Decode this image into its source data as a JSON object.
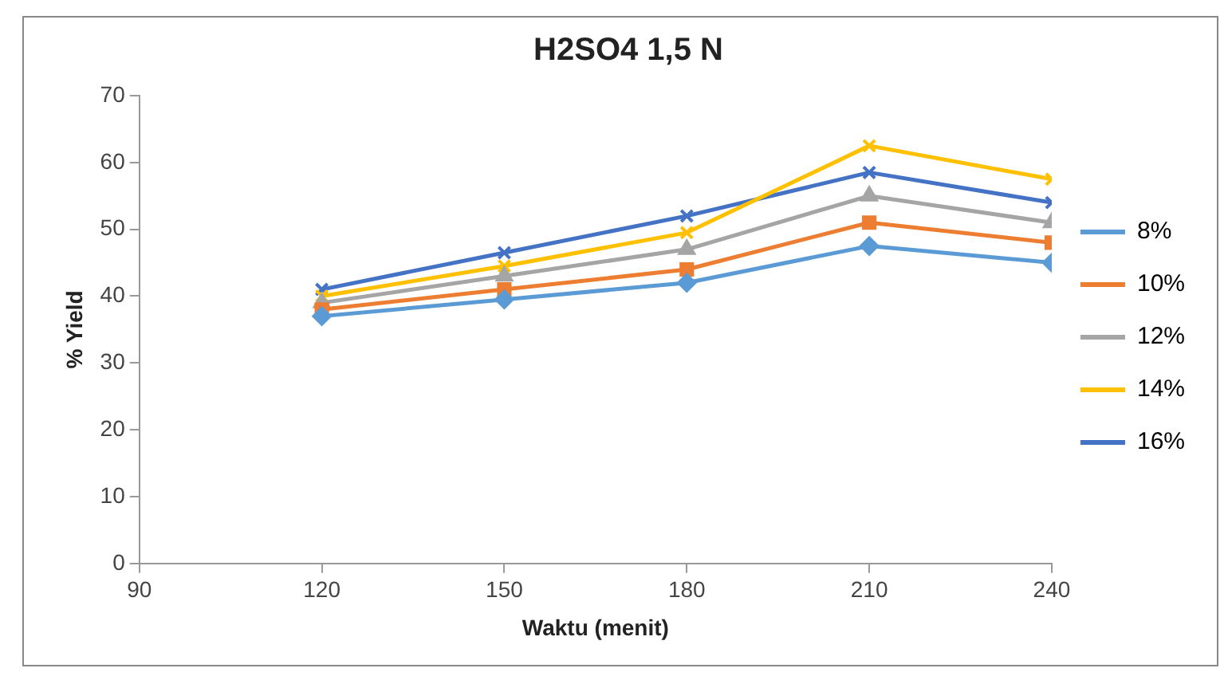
{
  "chart_data": {
    "type": "line",
    "title": "H2SO4 1,5 N",
    "xlabel": "Waktu (menit)",
    "ylabel": "% Yield",
    "x": [
      120,
      150,
      180,
      210,
      240
    ],
    "xlim": [
      90,
      240
    ],
    "xticks": [
      90,
      120,
      150,
      180,
      210,
      240
    ],
    "ylim": [
      0,
      70
    ],
    "yticks": [
      0,
      10,
      20,
      30,
      40,
      50,
      60,
      70
    ],
    "grid": false,
    "legend": "right",
    "series": [
      {
        "name": "8%",
        "color": "#5b9bd5",
        "marker": "diamond",
        "values": [
          37,
          39.5,
          42,
          47.5,
          45
        ]
      },
      {
        "name": "10%",
        "color": "#ed7d31",
        "marker": "square",
        "values": [
          38,
          41,
          44,
          51,
          48
        ]
      },
      {
        "name": "12%",
        "color": "#a5a5a5",
        "marker": "triangle",
        "values": [
          39,
          43,
          47,
          55,
          51
        ]
      },
      {
        "name": "14%",
        "color": "#ffc000",
        "marker": "cross",
        "values": [
          40,
          44.5,
          49.5,
          62.5,
          57.5
        ]
      },
      {
        "name": "16%",
        "color": "#4472c4",
        "marker": "cross",
        "values": [
          41,
          46.5,
          52,
          58.5,
          54
        ]
      }
    ]
  }
}
